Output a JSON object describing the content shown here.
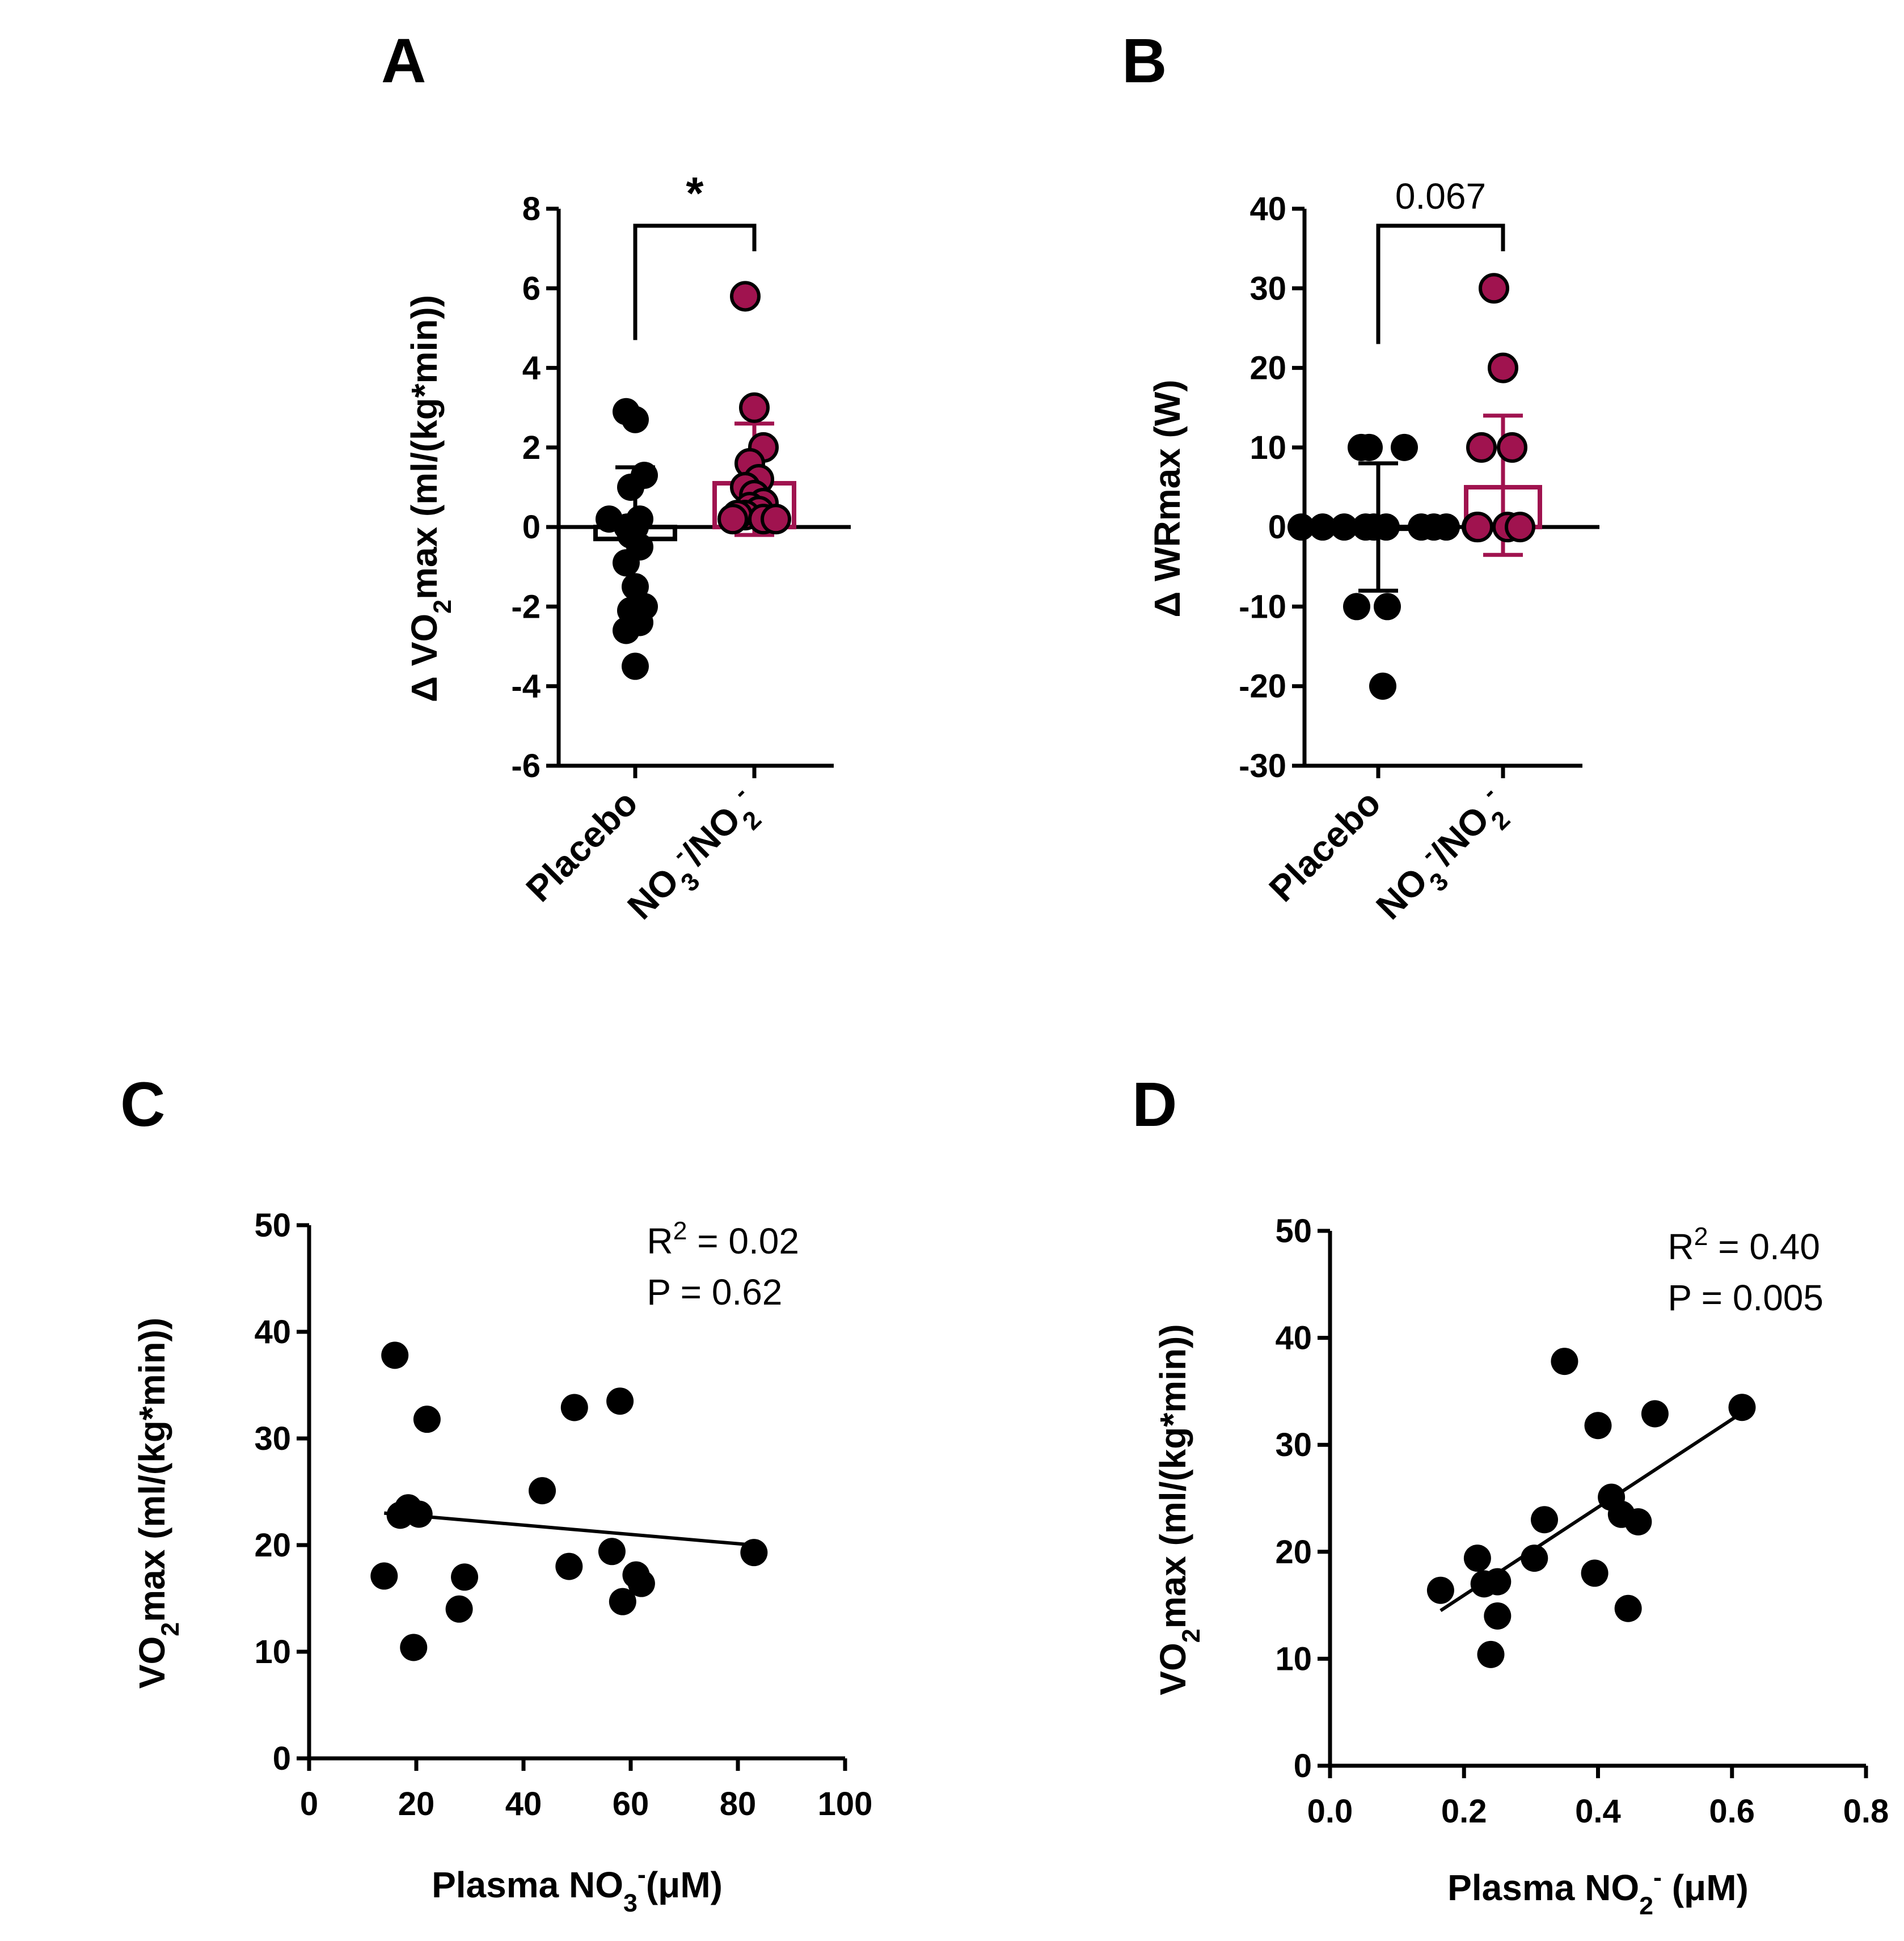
{
  "colors": {
    "placebo": "#000000",
    "treatment": "#a0134f",
    "text": "#000000"
  },
  "chart_data": [
    {
      "panel": "A",
      "type": "bar",
      "ylabel": "Δ VO2max (ml/(kg*min))",
      "ylabel_parts": [
        "Δ VO",
        "2",
        "max (ml/(kg*min))"
      ],
      "ylim": [
        -6,
        8
      ],
      "yticks": [
        "-6",
        "-4",
        "-2",
        "0",
        "2",
        "4",
        "6",
        "8"
      ],
      "categories": [
        "Placebo",
        "NO3-/NO2-"
      ],
      "category_parts": [
        [
          "Placebo"
        ],
        [
          "NO",
          "3",
          "-",
          "/NO",
          "2",
          "-"
        ]
      ],
      "means": [
        -0.3,
        1.1
      ],
      "sd_upper": [
        1.5,
        2.6
      ],
      "sd_lower": [
        -0.3,
        -0.2
      ],
      "points": [
        [
          2.9,
          2.7,
          1.3,
          1.0,
          0.2,
          0.2,
          0.0,
          0.0,
          -0.2,
          -0.5,
          -0.9,
          -1.5,
          -2.0,
          -2.1,
          -2.4,
          -2.6,
          -3.5
        ],
        [
          5.8,
          3.0,
          2.0,
          1.6,
          1.2,
          1.0,
          0.8,
          0.6,
          0.5,
          0.4,
          0.3,
          0.3,
          0.2,
          0.2,
          0.2
        ]
      ],
      "significance": "*"
    },
    {
      "panel": "B",
      "type": "bar",
      "ylabel": "Δ WRmax (W)",
      "ylim": [
        -30,
        40
      ],
      "yticks": [
        "-30",
        "-20",
        "-10",
        "0",
        "10",
        "20",
        "30",
        "40"
      ],
      "categories": [
        "Placebo",
        "NO3-/NO2-"
      ],
      "category_parts": [
        [
          "Placebo"
        ],
        [
          "NO",
          "3",
          "-",
          "/NO",
          "2",
          "-"
        ]
      ],
      "means": [
        0,
        5
      ],
      "sd_upper": [
        8,
        14
      ],
      "sd_lower": [
        -8,
        -3.5
      ],
      "points": [
        [
          10,
          10,
          10,
          0,
          0,
          0,
          0,
          0,
          0,
          0,
          0,
          0,
          -10,
          -10,
          -20
        ],
        [
          30,
          20,
          10,
          10,
          0,
          0,
          0,
          0
        ]
      ],
      "significance": "0.067"
    },
    {
      "panel": "C",
      "type": "scatter",
      "xlabel": "Plasma NO3-(μM)",
      "xlabel_parts": [
        "Plasma NO",
        "3",
        "-",
        "(μM)"
      ],
      "ylabel": "VO2max (ml/(kg*min))",
      "ylabel_parts": [
        "VO",
        "2",
        "max (ml/(kg*min))"
      ],
      "xlim": [
        0,
        100
      ],
      "ylim": [
        0,
        50
      ],
      "xticks": [
        "0",
        "20",
        "40",
        "60",
        "80",
        "100"
      ],
      "yticks": [
        "0",
        "10",
        "20",
        "30",
        "40",
        "50"
      ],
      "points": [
        [
          16,
          37.8
        ],
        [
          22,
          31.8
        ],
        [
          49.5,
          32.9
        ],
        [
          58,
          33.5
        ],
        [
          43.5,
          25.1
        ],
        [
          18.5,
          23.5
        ],
        [
          17,
          22.8
        ],
        [
          20.5,
          22.9
        ],
        [
          14,
          17.1
        ],
        [
          29,
          17.0
        ],
        [
          48.5,
          18.0
        ],
        [
          56.5,
          19.4
        ],
        [
          83,
          19.3
        ],
        [
          61,
          17.2
        ],
        [
          62,
          16.4
        ],
        [
          58.5,
          14.7
        ],
        [
          28,
          14.0
        ],
        [
          19.5,
          10.4
        ]
      ],
      "fit_line": {
        "x": [
          14,
          83
        ],
        "y": [
          23.0,
          20.0
        ]
      },
      "annotation": {
        "r2": "R2 = 0.02",
        "r2_parts": [
          "R",
          "2",
          " = 0.02"
        ],
        "p": "P = 0.62"
      }
    },
    {
      "panel": "D",
      "type": "scatter",
      "xlabel": "Plasma NO2- (μM)",
      "xlabel_parts": [
        "Plasma NO",
        "2",
        "-",
        " (μM)"
      ],
      "ylabel": "VO2max (ml/(kg*min))",
      "ylabel_parts": [
        "VO",
        "2",
        "max (ml/(kg*min))"
      ],
      "xlim": [
        0,
        0.8
      ],
      "ylim": [
        0,
        50
      ],
      "xticks": [
        "0.0",
        "0.2",
        "0.4",
        "0.6",
        "0.8"
      ],
      "yticks": [
        "0",
        "10",
        "20",
        "30",
        "40",
        "50"
      ],
      "points": [
        [
          0.35,
          37.8
        ],
        [
          0.4,
          31.8
        ],
        [
          0.485,
          32.9
        ],
        [
          0.615,
          33.5
        ],
        [
          0.42,
          25.1
        ],
        [
          0.32,
          23.0
        ],
        [
          0.435,
          23.5
        ],
        [
          0.46,
          22.8
        ],
        [
          0.305,
          19.4
        ],
        [
          0.22,
          19.4
        ],
        [
          0.395,
          18.0
        ],
        [
          0.25,
          17.2
        ],
        [
          0.23,
          17.0
        ],
        [
          0.165,
          16.4
        ],
        [
          0.445,
          14.7
        ],
        [
          0.25,
          14.0
        ],
        [
          0.24,
          10.4
        ]
      ],
      "fit_line": {
        "x": [
          0.165,
          0.615
        ],
        "y": [
          14.5,
          33.0
        ]
      },
      "annotation": {
        "r2": "R2 = 0.40",
        "r2_parts": [
          "R",
          "2",
          " = 0.40"
        ],
        "p": "P = 0.005"
      }
    }
  ]
}
